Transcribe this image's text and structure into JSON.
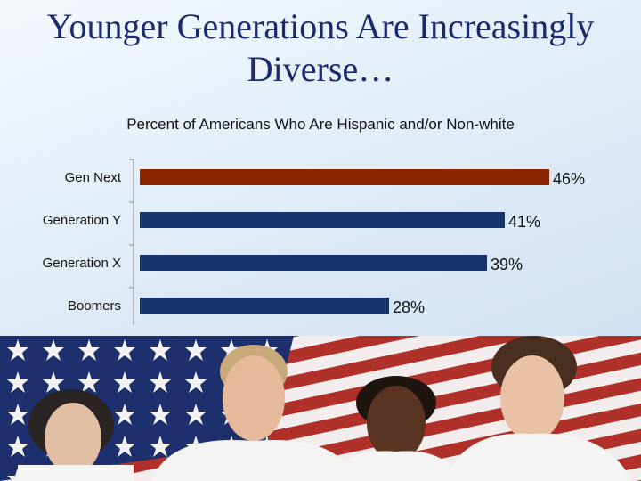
{
  "slide": {
    "title": "Younger Generations Are Increasingly Diverse…"
  },
  "chart_data": {
    "type": "bar",
    "orientation": "horizontal",
    "title": "Percent of Americans Who Are Hispanic and/or Non-white",
    "categories": [
      "Gen Next",
      "Generation Y",
      "Generation X",
      "Boomers"
    ],
    "values": [
      46,
      41,
      39,
      28
    ],
    "value_labels": [
      "46%",
      "41%",
      "39%",
      "28%"
    ],
    "xlim": [
      0,
      54
    ],
    "grid": false,
    "legend": "none",
    "colors": [
      "#8b2500",
      "#17336b",
      "#17336b",
      "#17336b"
    ]
  },
  "photo": {
    "description_icon": "flag-group-photo",
    "colors": {
      "stripe_red": "#b0302a",
      "canton_blue": "#1d2f6d",
      "shirt": "#f4f4f2"
    }
  }
}
